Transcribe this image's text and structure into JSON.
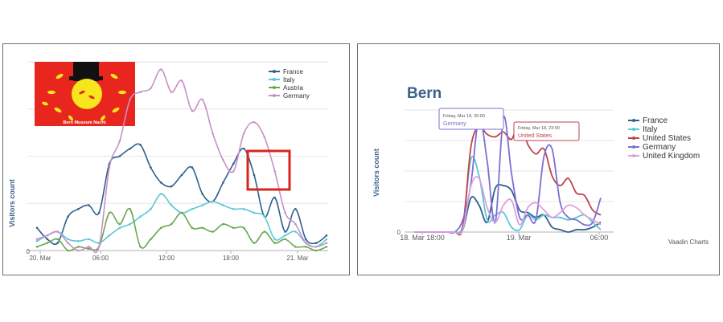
{
  "colors": {
    "france": "#2f5f8c",
    "italy": "#5cc8d6",
    "austria": "#6aa84f",
    "germany": "#c990c8",
    "germany_right": "#7b6fd6",
    "united_states": "#c0424d",
    "united_kingdom": "#dda0dd",
    "highlight": "#d9261c",
    "flag_red": "#e8261d",
    "sun_yellow": "#f7e51d"
  },
  "chart_data": [
    {
      "type": "line",
      "title": "",
      "ylabel": "Visitors count",
      "xlabel": "",
      "x_ticks": [
        "20. Mar",
        "06:00",
        "12:00",
        "18:00",
        "21. Mar"
      ],
      "y_ticks": [
        "0"
      ],
      "ylim": [
        0,
        100
      ],
      "grid": true,
      "legend_position": "top-right",
      "image_caption": "Bern Museum Nacht",
      "series": [
        {
          "name": "France",
          "color_key": "france",
          "values": [
            12,
            6,
            4,
            18,
            22,
            24,
            20,
            46,
            50,
            54,
            56,
            44,
            36,
            34,
            40,
            44,
            30,
            26,
            36,
            46,
            54,
            40,
            18,
            28,
            10,
            22,
            6,
            4,
            8
          ]
        },
        {
          "name": "Italy",
          "color_key": "italy",
          "values": [
            5,
            8,
            10,
            6,
            5,
            6,
            4,
            8,
            12,
            14,
            18,
            22,
            30,
            24,
            20,
            22,
            24,
            26,
            24,
            22,
            22,
            20,
            18,
            6,
            8,
            10,
            4,
            2,
            6
          ]
        },
        {
          "name": "Austria",
          "color_key": "austria",
          "values": [
            2,
            4,
            6,
            0,
            2,
            1,
            2,
            20,
            14,
            22,
            2,
            6,
            12,
            14,
            20,
            12,
            12,
            10,
            14,
            12,
            12,
            4,
            10,
            4,
            6,
            2,
            2,
            0,
            2
          ]
        },
        {
          "name": "Germany",
          "color_key": "germany",
          "values": [
            6,
            8,
            10,
            4,
            0,
            2,
            2,
            44,
            58,
            80,
            84,
            86,
            96,
            84,
            90,
            74,
            80,
            62,
            48,
            42,
            62,
            68,
            60,
            42,
            20,
            14,
            4,
            2,
            4
          ]
        }
      ]
    },
    {
      "type": "line",
      "title": "Bern",
      "ylabel": "Visitors count",
      "xlabel": "",
      "x_ticks": [
        "18. Mar 18:00",
        "19. Mar",
        "06:00"
      ],
      "y_ticks": [
        "0"
      ],
      "ylim": [
        0,
        100
      ],
      "grid": true,
      "legend_position": "right",
      "credit": "Vaadin Charts",
      "tooltips": [
        {
          "header": "Friday, Mar 18, 20:00",
          "series": "Germany",
          "color_key": "germany_right"
        },
        {
          "header": "Friday, Mar 18, 23:00",
          "series": "United States",
          "color_key": "united_states"
        }
      ],
      "series": [
        {
          "name": "France",
          "color_key": "france",
          "values": [
            0,
            0,
            0,
            0,
            0,
            0,
            2,
            28,
            22,
            8,
            36,
            38,
            34,
            18,
            16,
            12,
            14,
            4,
            2,
            0,
            2,
            2,
            4,
            8
          ]
        },
        {
          "name": "Italy",
          "color_key": "italy",
          "values": [
            0,
            0,
            0,
            0,
            0,
            0,
            6,
            60,
            46,
            10,
            14,
            16,
            4,
            2,
            14,
            10,
            14,
            12,
            12,
            10,
            12,
            14,
            8,
            2
          ]
        },
        {
          "name": "United States",
          "color_key": "united_states",
          "values": [
            0,
            0,
            0,
            0,
            0,
            0,
            4,
            70,
            86,
            80,
            78,
            82,
            76,
            90,
            72,
            64,
            68,
            46,
            38,
            44,
            32,
            30,
            18,
            14
          ]
        },
        {
          "name": "Germany",
          "color_key": "germany_right",
          "values": [
            0,
            0,
            0,
            0,
            0,
            0,
            10,
            40,
            94,
            58,
            8,
            94,
            48,
            12,
            14,
            10,
            62,
            68,
            24,
            12,
            10,
            6,
            8,
            28
          ]
        },
        {
          "name": "United Kingdom",
          "color_key": "united_kingdom",
          "values": [
            0,
            0,
            0,
            0,
            0,
            0,
            2,
            38,
            44,
            20,
            8,
            22,
            26,
            6,
            20,
            24,
            18,
            12,
            16,
            22,
            20,
            14,
            10,
            6
          ]
        }
      ]
    }
  ]
}
